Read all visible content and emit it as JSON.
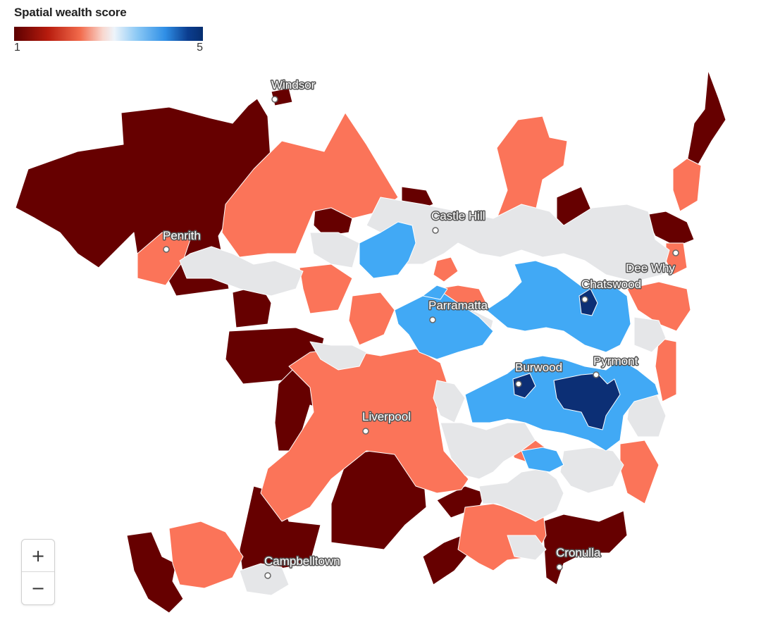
{
  "legend": {
    "title": "Spatial wealth score",
    "min_label": "1",
    "max_label": "5",
    "gradient_colors": [
      "#5c0000",
      "#f26b4c",
      "#eef4fa",
      "#2f8fe6",
      "#062e6f"
    ]
  },
  "colors": {
    "score_1": "#660000",
    "score_2": "#fb7459",
    "score_3": "#e5e6e8",
    "score_4": "#41a9f5",
    "score_5": "#0c2f75",
    "boundary": "#ffffff"
  },
  "places": [
    {
      "id": "windsor",
      "name": "Windsor"
    },
    {
      "id": "castle-hill",
      "name": "Castle Hill"
    },
    {
      "id": "penrith",
      "name": "Penrith"
    },
    {
      "id": "dee-why",
      "name": "Dee Why"
    },
    {
      "id": "chatswood",
      "name": "Chatswood"
    },
    {
      "id": "parramatta",
      "name": "Parramatta"
    },
    {
      "id": "burwood",
      "name": "Burwood"
    },
    {
      "id": "pyrmont",
      "name": "Pyrmont"
    },
    {
      "id": "liverpool",
      "name": "Liverpool"
    },
    {
      "id": "campbelltown",
      "name": "Campbelltown"
    },
    {
      "id": "cronulla",
      "name": "Cronulla"
    }
  ],
  "zoom": {
    "in_label": "+",
    "out_label": "−"
  }
}
